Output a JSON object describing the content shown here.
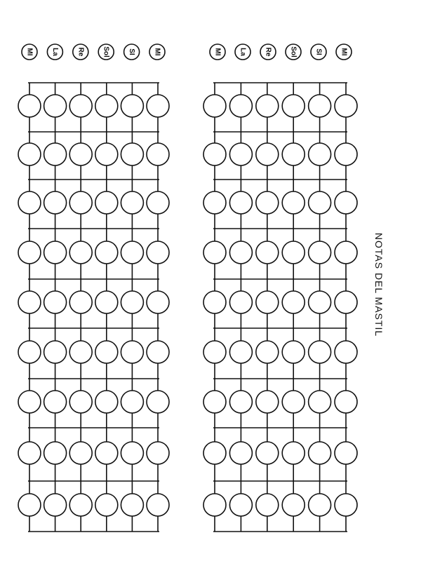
{
  "title": "NOTAS DEL MASTIL",
  "string_labels": [
    "MI",
    "La",
    "Re",
    "Sol",
    "SI",
    "MI"
  ],
  "fretboards": [
    {
      "name": "fretboard-left",
      "frets": 9
    },
    {
      "name": "fretboard-right",
      "frets": 9
    }
  ],
  "colors": {
    "ink": "#111111",
    "paper": "#ffffff"
  }
}
